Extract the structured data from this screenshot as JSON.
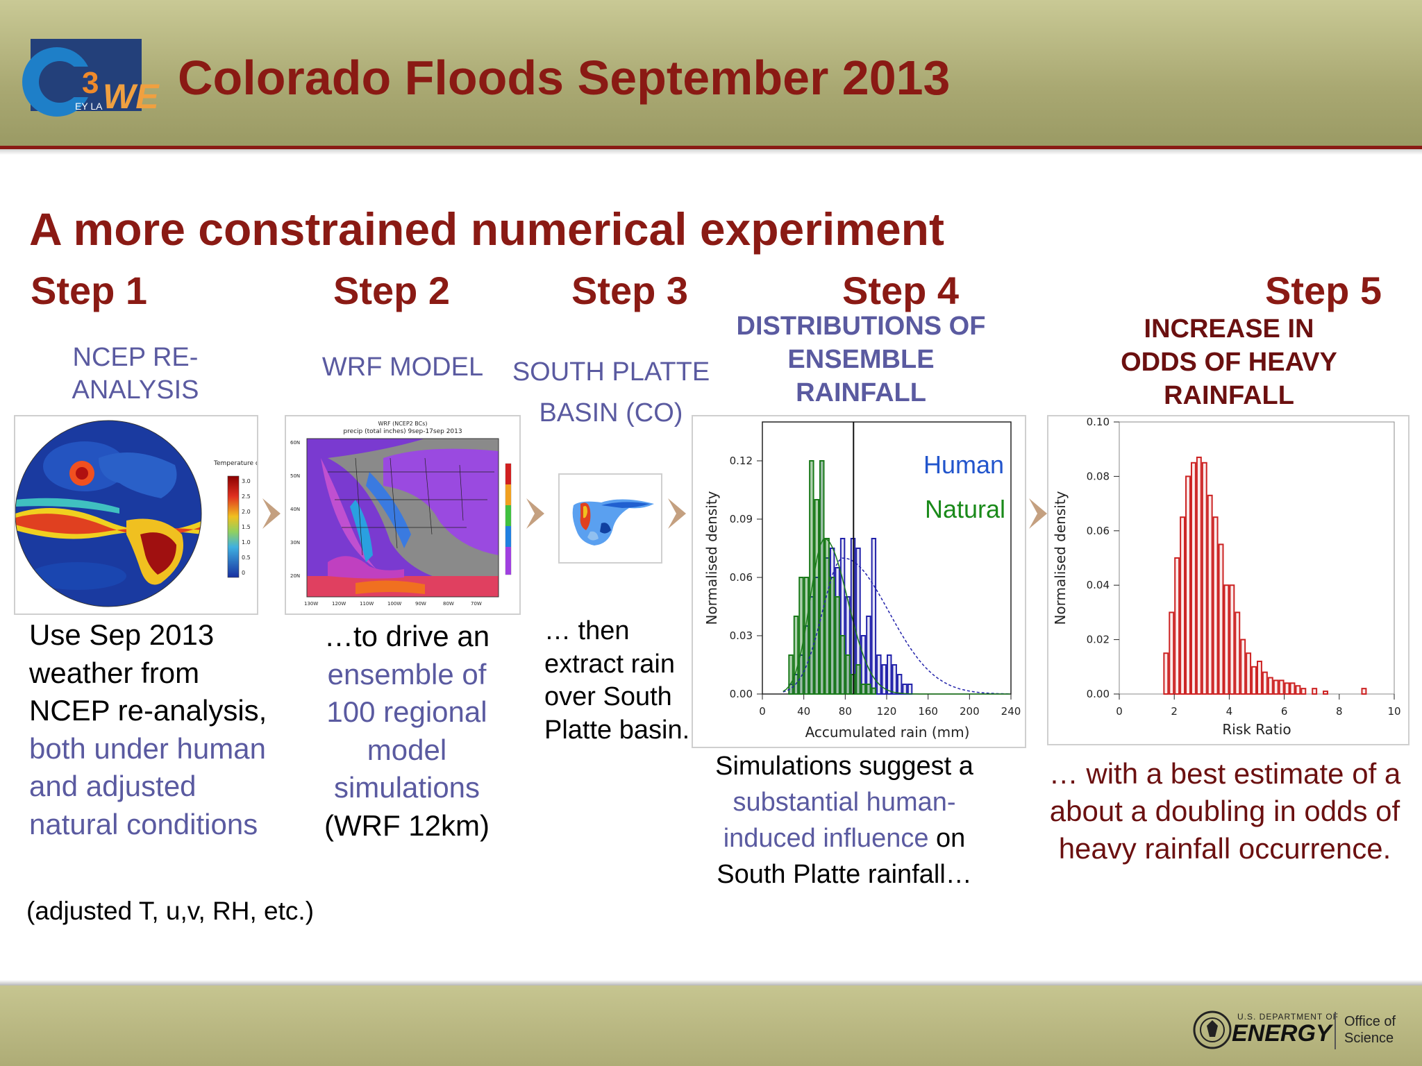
{
  "header": {
    "title": "Colorado Floods September 2013",
    "logo_text": "CW3E",
    "logo_small": "EY LA"
  },
  "subtitle": "A more constrained numerical experiment",
  "steps": [
    {
      "heading": "Step 1",
      "label_line1": "NCEP RE-",
      "label_line2": "ANALYSIS"
    },
    {
      "heading": "Step 2",
      "label_line1": "WRF MODEL"
    },
    {
      "heading": "Step 3",
      "label_line1": "SOUTH PLATTE",
      "label_line2": "BASIN (CO)"
    },
    {
      "heading": "Step 4",
      "label_line1": "DISTRIBUTIONS OF",
      "label_line2": "ENSEMBLE",
      "label_line3": "RAINFALL"
    },
    {
      "heading": "Step 5",
      "label_line1": "INCREASE IN",
      "label_line2": "ODDS OF HEAVY",
      "label_line3": "RAINFALL"
    }
  ],
  "globe": {
    "colorbar_title": "Temperature change °C",
    "colorbar_ticks": [
      "3.0",
      "2.5",
      "2.0",
      "1.5",
      "1.0",
      "0.5",
      "0"
    ]
  },
  "wrf_map": {
    "title_line1": "WRF (NCEP2 BCs)",
    "title_line2": "precip (total inches) 9sep-17sep 2013",
    "lat_ticks": [
      "60N",
      "50N",
      "40N",
      "30N",
      "20N"
    ],
    "lon_ticks": [
      "130W",
      "120W",
      "110W",
      "100W",
      "90W",
      "80W",
      "70W"
    ]
  },
  "descriptions": {
    "step1_a": "Use Sep 2013 weather from NCEP re-analysis,",
    "step1_b": "both under human and adjusted natural conditions",
    "step1_note": "(adjusted T, u,v, RH, etc.)",
    "step2_a": "…to drive an",
    "step2_b": "ensemble of 100 regional model simulations",
    "step2_c": "(WRF 12km)",
    "step3": "… then extract rain over South Platte basin.",
    "step4_a": "Simulations suggest a",
    "step4_b": "substantial human-induced influence",
    "step4_c": "on South Platte rainfall…",
    "step5": "… with a best estimate of a about a doubling in odds of heavy rainfall occurrence."
  },
  "chart_data": [
    {
      "type": "bar",
      "title": "",
      "xlabel": "Accumulated rain (mm)",
      "ylabel": "Normalised density",
      "xlim": [
        0,
        240
      ],
      "ylim": [
        0,
        0.14
      ],
      "x_ticks": [
        "0",
        "40",
        "80",
        "120",
        "160",
        "200",
        "240"
      ],
      "y_ticks": [
        "0.00",
        "0.03",
        "0.06",
        "0.09",
        "0.12"
      ],
      "legend": [
        "Human",
        "Natural"
      ],
      "bin_width": 5,
      "series": [
        {
          "name": "Human",
          "color": "#2222aa",
          "bin_starts": [
            25,
            30,
            35,
            40,
            45,
            50,
            55,
            60,
            65,
            70,
            75,
            80,
            85,
            90,
            95,
            100,
            105,
            110,
            115,
            120,
            125,
            130,
            135,
            140
          ],
          "values": [
            0.005,
            0.01,
            0.02,
            0.035,
            0.05,
            0.06,
            0.12,
            0.07,
            0.075,
            0.065,
            0.08,
            0.05,
            0.08,
            0.075,
            0.03,
            0.04,
            0.08,
            0.02,
            0.015,
            0.02,
            0.015,
            0.01,
            0.005,
            0.005
          ]
        },
        {
          "name": "Natural",
          "color": "#1a7a1a",
          "bin_starts": [
            25,
            30,
            35,
            40,
            45,
            50,
            55,
            60,
            65,
            70,
            75,
            80,
            85,
            90,
            95,
            100,
            105
          ],
          "values": [
            0.02,
            0.04,
            0.06,
            0.06,
            0.12,
            0.1,
            0.12,
            0.08,
            0.06,
            0.05,
            0.03,
            0.02,
            0.01,
            0.015,
            0.005,
            0.005,
            0.003
          ]
        }
      ],
      "vline_x": 88
    },
    {
      "type": "bar",
      "title": "",
      "xlabel": "Risk Ratio",
      "ylabel": "Normalised density",
      "xlim": [
        0,
        10
      ],
      "ylim": [
        0,
        0.1
      ],
      "x_ticks": [
        "0",
        "2",
        "4",
        "6",
        "8",
        "10"
      ],
      "y_ticks": [
        "0.00",
        "0.02",
        "0.04",
        "0.06",
        "0.08",
        "0.10"
      ],
      "bin_width": 0.2,
      "series": [
        {
          "name": "",
          "color": "#cc2222",
          "bin_starts": [
            1.6,
            1.8,
            2.0,
            2.2,
            2.4,
            2.6,
            2.8,
            3.0,
            3.2,
            3.4,
            3.6,
            3.8,
            4.0,
            4.2,
            4.4,
            4.6,
            4.8,
            5.0,
            5.2,
            5.4,
            5.6,
            5.8,
            6.0,
            6.2,
            6.4,
            6.6,
            7.0,
            7.4,
            8.8
          ],
          "values": [
            0.015,
            0.03,
            0.05,
            0.065,
            0.08,
            0.085,
            0.087,
            0.085,
            0.073,
            0.065,
            0.055,
            0.04,
            0.04,
            0.03,
            0.02,
            0.015,
            0.01,
            0.012,
            0.008,
            0.006,
            0.005,
            0.005,
            0.004,
            0.004,
            0.003,
            0.002,
            0.002,
            0.001,
            0.002
          ]
        }
      ]
    }
  ],
  "footer": {
    "doe_small": "U.S. DEPARTMENT OF",
    "doe_big": "ENERGY",
    "office_line1": "Office of",
    "office_line2": "Science"
  }
}
